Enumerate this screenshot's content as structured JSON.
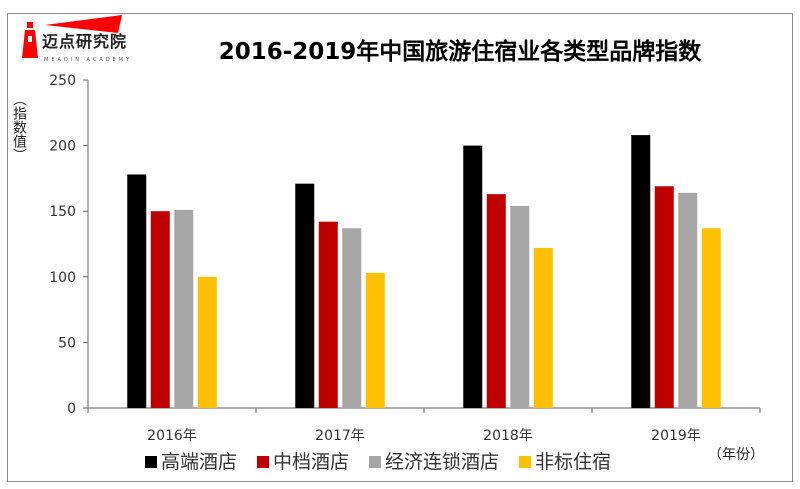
{
  "logo": {
    "name": "迈点研究院",
    "subtitle": "MEADIN ACADEMY"
  },
  "chart_data": {
    "type": "bar",
    "title": "2016-2019年中国旅游住宿业各类型品牌指数",
    "ylabel": "（指数值）",
    "xlabel": "（年份）",
    "categories": [
      "2016年",
      "2017年",
      "2018年",
      "2019年"
    ],
    "series": [
      {
        "name": "高端酒店",
        "color": "#000000",
        "values": [
          178,
          171,
          200,
          208
        ]
      },
      {
        "name": "中档酒店",
        "color": "#c00000",
        "values": [
          150,
          142,
          163,
          169
        ]
      },
      {
        "name": "经济连锁酒店",
        "color": "#a6a6a6",
        "values": [
          151,
          137,
          154,
          164
        ]
      },
      {
        "name": "非标住宿",
        "color": "#ffc000",
        "values": [
          100,
          103,
          122,
          137
        ]
      }
    ],
    "ylim": [
      0,
      250
    ],
    "yticks": [
      0,
      50,
      100,
      150,
      200,
      250
    ],
    "grid": false,
    "legend": "bottom"
  }
}
